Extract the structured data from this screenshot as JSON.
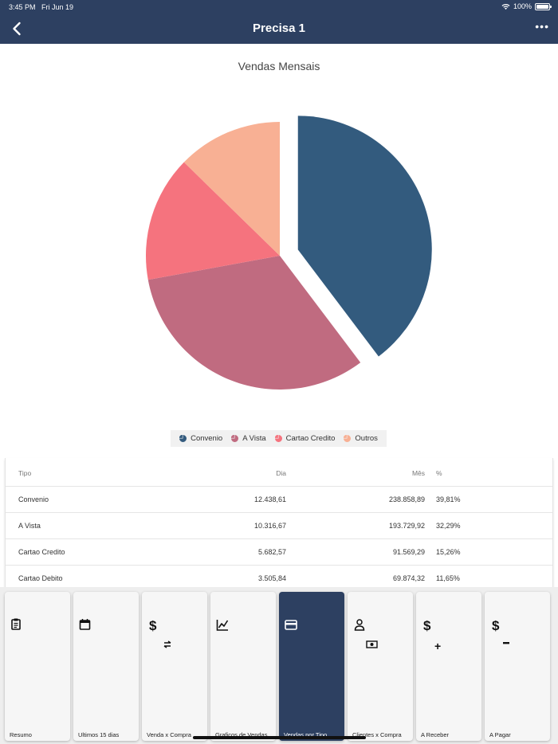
{
  "status": {
    "time": "3:45 PM",
    "date": "Fri Jun 19",
    "battery": "100%"
  },
  "nav": {
    "title": "Precisa 1",
    "more": "•••"
  },
  "chart_data": {
    "type": "pie",
    "title": "Vendas Mensais",
    "categories": [
      "Convenio",
      "A Vista",
      "Cartao Credito",
      "Outros"
    ],
    "values": [
      41.3,
      33.7,
      15.8,
      13.2
    ],
    "colors": [
      "#335b7e",
      "#c06b80",
      "#f5737e",
      "#f8b094"
    ],
    "exploded": "Convenio",
    "legend_position": "bottom"
  },
  "table": {
    "headers": {
      "tipo": "Tipo",
      "dia": "Dia",
      "mes": "Mês",
      "pct": "%"
    },
    "rows": [
      {
        "tipo": "Convenio",
        "dia": "12.438,61",
        "mes": "238.858,89",
        "pct": "39,81%"
      },
      {
        "tipo": "A Vista",
        "dia": "10.316,67",
        "mes": "193.729,92",
        "pct": "32,29%"
      },
      {
        "tipo": "Cartao Credito",
        "dia": "5.682,57",
        "mes": "91.569,29",
        "pct": "15,26%"
      },
      {
        "tipo": "Cartao Debito",
        "dia": "3.505,84",
        "mes": "69.874,32",
        "pct": "11,65%"
      }
    ]
  },
  "tabs": [
    {
      "label": "Resumo",
      "icon": "clipboard-icon"
    },
    {
      "label": "Ultimos 15 dias",
      "icon": "calendar-icon"
    },
    {
      "label": "Venda x Compra",
      "icon": "dollar-exchange-icon"
    },
    {
      "label": "Graficos de Vendas",
      "icon": "line-chart-icon"
    },
    {
      "label": "Vendas por Tipo",
      "icon": "credit-card-icon",
      "active": true
    },
    {
      "label": "Clientes x Compra",
      "icon": "person-money-icon"
    },
    {
      "label": "A Receber",
      "icon": "dollar-plus-icon"
    },
    {
      "label": "A Pagar",
      "icon": "dollar-minus-icon"
    }
  ]
}
